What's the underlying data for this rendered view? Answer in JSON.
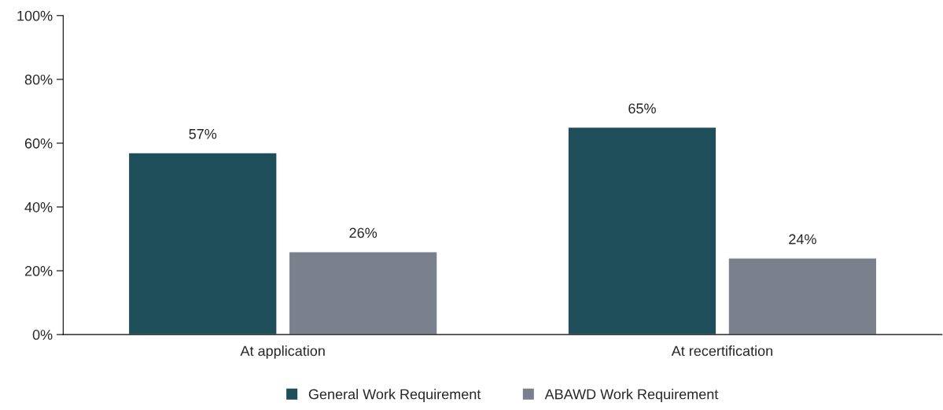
{
  "chart_data": {
    "type": "bar",
    "categories": [
      "At application",
      "At recertification"
    ],
    "series": [
      {
        "name": "General Work Requirement",
        "color": "#1f4e5b",
        "values": [
          57,
          65
        ],
        "value_labels": [
          "57%",
          "65%"
        ]
      },
      {
        "name": "ABAWD Work Requirement",
        "color": "#7a808c",
        "values": [
          26,
          24
        ],
        "value_labels": [
          "26%",
          "24%"
        ]
      }
    ],
    "ylim": [
      0,
      100
    ],
    "yticks": [
      {
        "value": 0,
        "label": "0%"
      },
      {
        "value": 20,
        "label": "20%"
      },
      {
        "value": 40,
        "label": "40%"
      },
      {
        "value": 60,
        "label": "60%"
      },
      {
        "value": 80,
        "label": "80%"
      },
      {
        "value": 100,
        "label": "100%"
      }
    ],
    "grid": false,
    "legend": "bottom"
  }
}
